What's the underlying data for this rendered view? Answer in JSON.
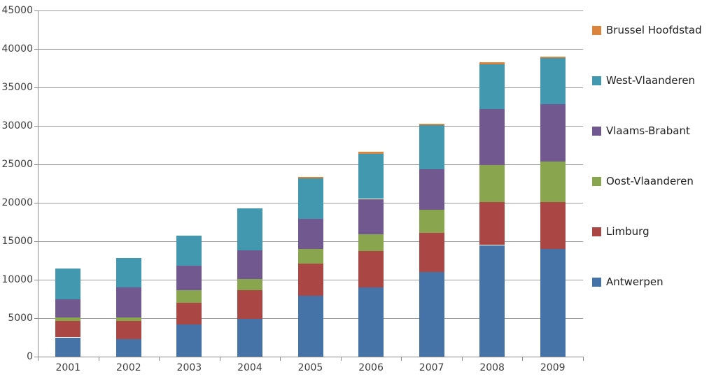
{
  "chart_data": {
    "type": "bar",
    "stacked": true,
    "title": "",
    "xlabel": "",
    "ylabel": "",
    "categories": [
      "2001",
      "2002",
      "2003",
      "2004",
      "2005",
      "2006",
      "2007",
      "2008",
      "2009"
    ],
    "series": [
      {
        "name": "Antwerpen",
        "color": "#4572A7",
        "values": [
          2500,
          2300,
          4200,
          4900,
          7900,
          9000,
          11000,
          14500,
          14000
        ]
      },
      {
        "name": "Limburg",
        "color": "#AA4643",
        "values": [
          2100,
          2300,
          2800,
          3700,
          4200,
          4700,
          5100,
          5600,
          6100
        ]
      },
      {
        "name": "Oost-Vlaanderen",
        "color": "#89A54E",
        "values": [
          500,
          500,
          1600,
          1500,
          1900,
          2200,
          3000,
          4800,
          5300
        ]
      },
      {
        "name": "Vlaams-Brabant",
        "color": "#71588F",
        "values": [
          2400,
          3900,
          3200,
          3700,
          3900,
          4600,
          5300,
          7300,
          7400
        ]
      },
      {
        "name": "West-Vlaanderen",
        "color": "#4198AF",
        "values": [
          4000,
          3800,
          3900,
          5500,
          5300,
          5900,
          5700,
          5800,
          6100
        ]
      },
      {
        "name": "Brussel Hoofdstad",
        "color": "#DB843D",
        "values": [
          0,
          0,
          0,
          0,
          200,
          200,
          200,
          300,
          100
        ]
      }
    ],
    "totals": [
      11500,
      12800,
      15700,
      19300,
      23400,
      26600,
      30300,
      38300,
      39000
    ],
    "ylim": [
      0,
      45000
    ],
    "ytick_step": 5000,
    "ytick_labels": [
      "0",
      "5000",
      "10000",
      "15000",
      "20000",
      "25000",
      "30000",
      "35000",
      "40000",
      "45000"
    ],
    "grid": true,
    "legend_position": "right",
    "legend_order": [
      "Brussel Hoofdstad",
      "West-Vlaanderen",
      "Vlaams-Brabant",
      "Oost-Vlaanderen",
      "Limburg",
      "Antwerpen"
    ]
  },
  "style_colors": {
    "axis": "#8c8c8c",
    "gridline": "#9c9c9c",
    "tick_text": "#3f3f3f",
    "legend_text": "#1f1f1f",
    "background": "#ffffff"
  }
}
